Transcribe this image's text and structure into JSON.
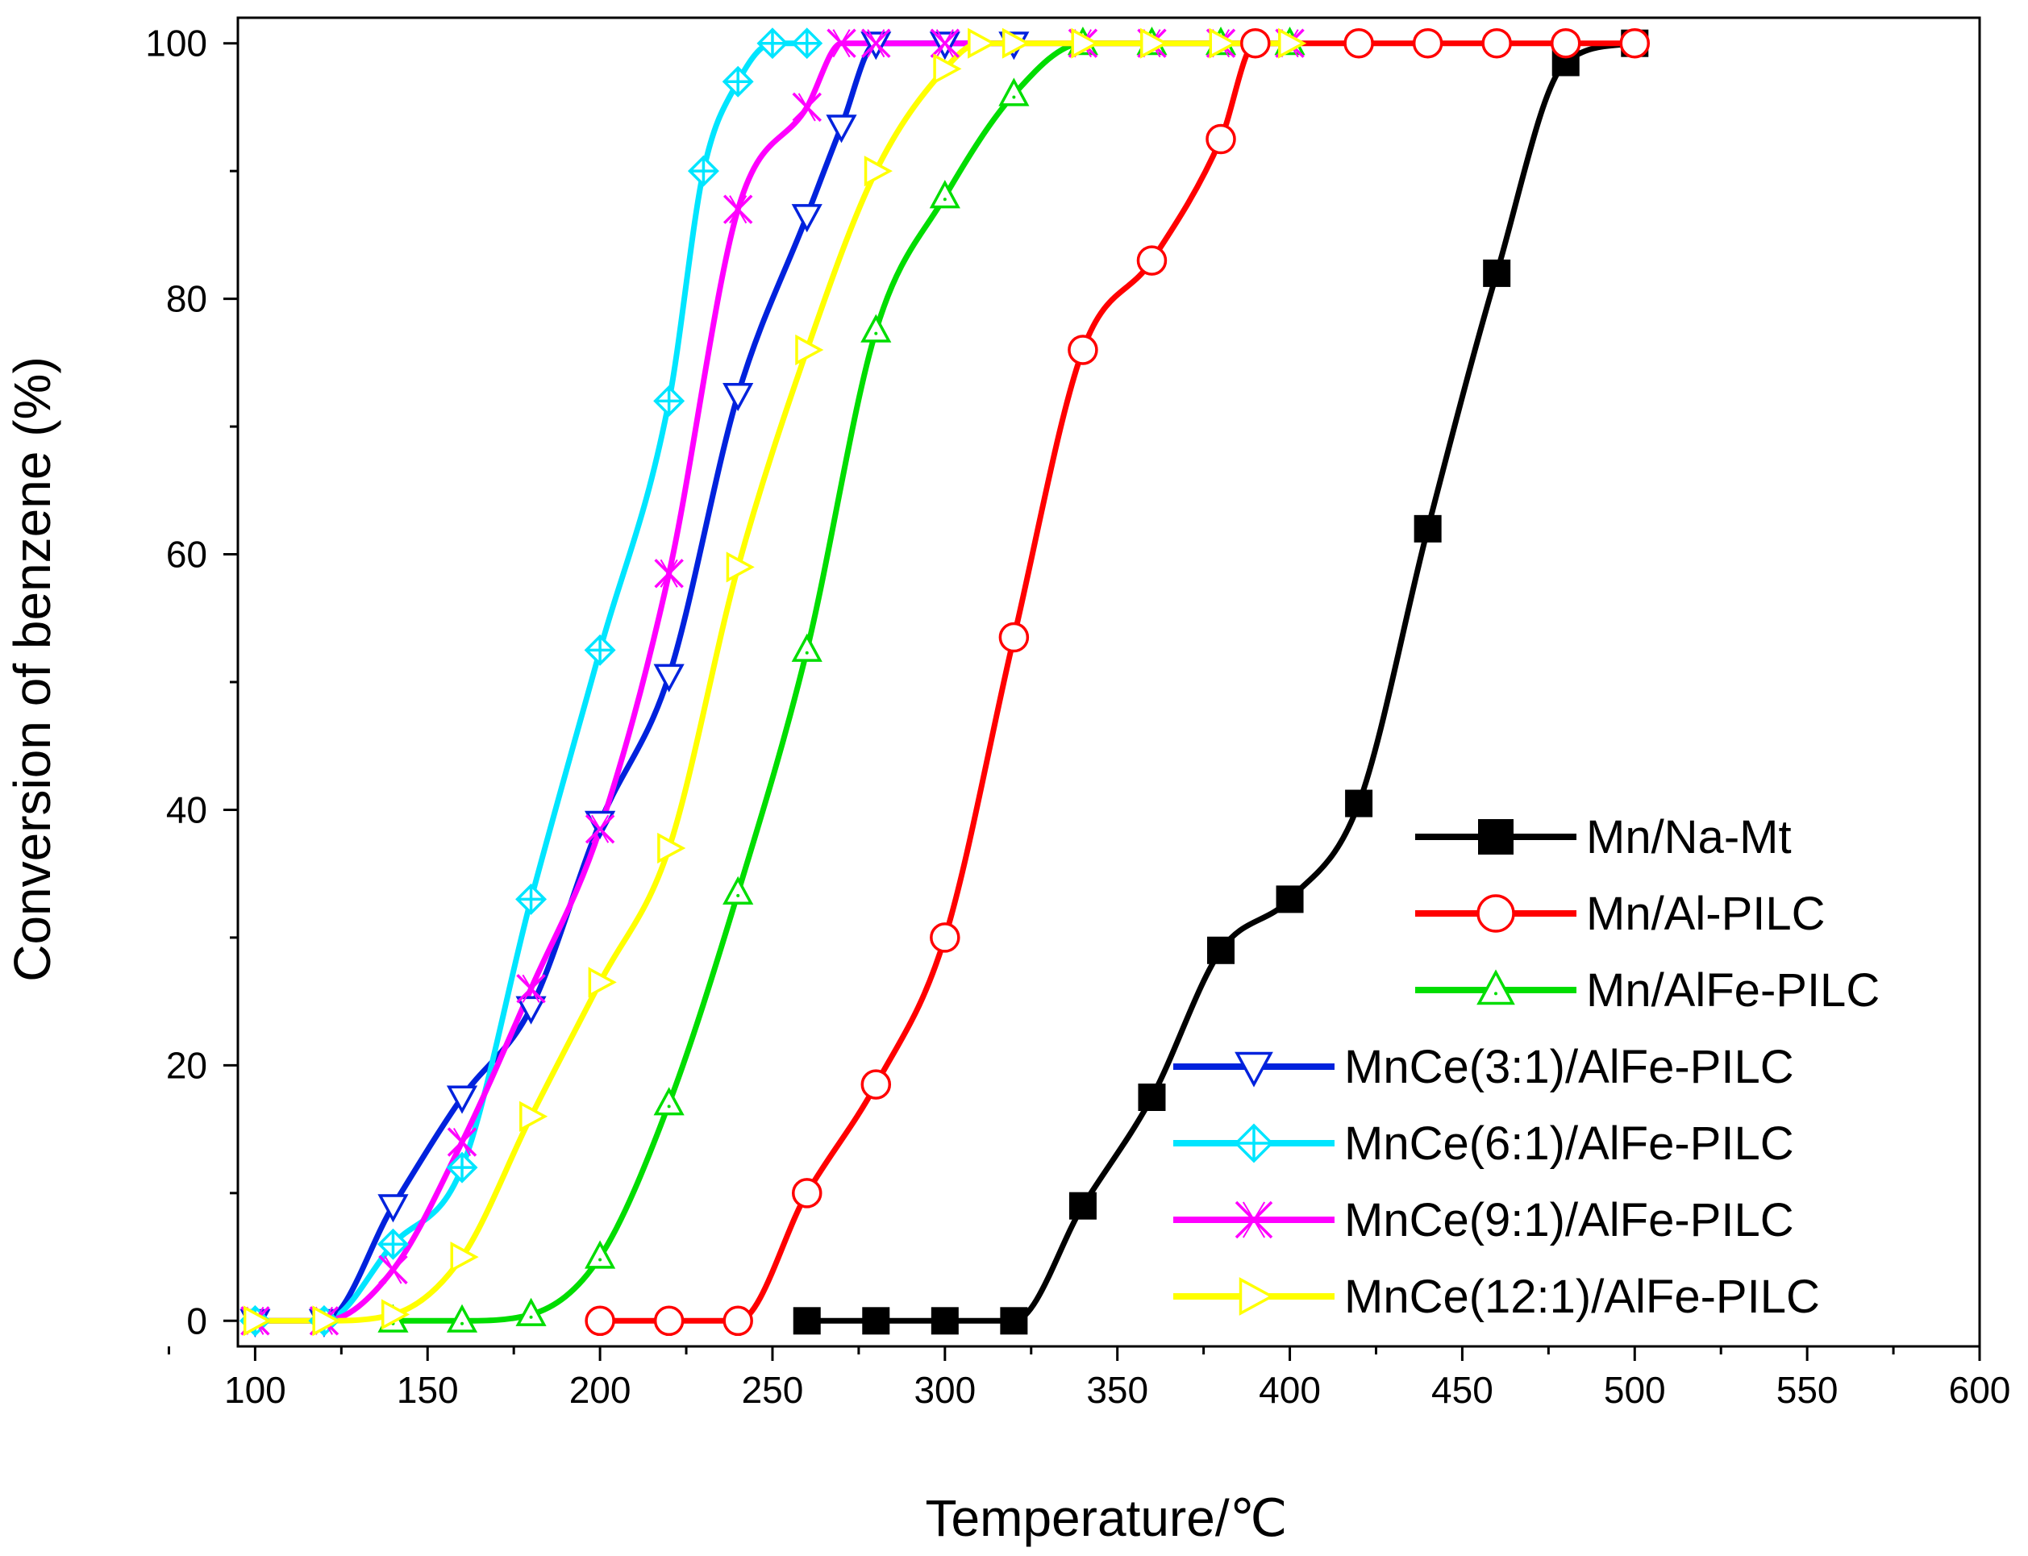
{
  "chart_data": {
    "type": "line",
    "title": "",
    "xlabel": "Temperature/℃",
    "ylabel": "Conversion of benzene (%)",
    "xlim": [
      95,
      600
    ],
    "ylim": [
      -2,
      102
    ],
    "xticks": [
      100,
      150,
      200,
      250,
      300,
      350,
      400,
      450,
      500,
      550,
      600
    ],
    "yticks": [
      0,
      20,
      40,
      60,
      80,
      100
    ],
    "legend_position": "bottom-right",
    "series": [
      {
        "name": "Mn/Na-Mt",
        "color": "#000000",
        "marker": "square-filled",
        "x": [
          260,
          280,
          300,
          320,
          340,
          360,
          380,
          400,
          420,
          440,
          460,
          480,
          500
        ],
        "y": [
          0,
          0,
          0,
          0,
          9,
          17.5,
          29,
          33,
          40.5,
          62,
          82,
          98.5,
          100
        ]
      },
      {
        "name": "Mn/Al-PILC",
        "color": "#ff0000",
        "marker": "circle-open",
        "x": [
          200,
          220,
          240,
          260,
          280,
          300,
          320,
          340,
          360,
          380,
          390,
          420,
          440,
          460,
          480,
          500
        ],
        "y": [
          0,
          0,
          0,
          10,
          18.5,
          30,
          53.5,
          76,
          83,
          92.5,
          100,
          100,
          100,
          100,
          100,
          100
        ]
      },
      {
        "name": "Mn/AlFe-PILC",
        "color": "#00dd00",
        "marker": "triangle-up-open",
        "x": [
          140,
          160,
          180,
          200,
          220,
          240,
          260,
          280,
          300,
          320,
          340,
          360,
          380,
          400
        ],
        "y": [
          0,
          0,
          0.5,
          5,
          17,
          33.5,
          52.5,
          77.5,
          88,
          96,
          100,
          100,
          100,
          100
        ]
      },
      {
        "name": "MnCe(3:1)/AlFe-PILC",
        "color": "#0022dd",
        "marker": "triangle-down-open",
        "x": [
          100,
          120,
          140,
          160,
          180,
          200,
          220,
          240,
          260,
          270,
          280,
          300,
          320
        ],
        "y": [
          0,
          0,
          9,
          17.5,
          24.5,
          39,
          50.5,
          72.5,
          86.5,
          93.5,
          100,
          100,
          100
        ]
      },
      {
        "name": "MnCe(6:1)/AlFe-PILC",
        "color": "#00e5ff",
        "marker": "diamond-cross-open",
        "x": [
          100,
          120,
          140,
          160,
          180,
          200,
          220,
          230,
          240,
          250,
          260
        ],
        "y": [
          0,
          0,
          6,
          12,
          33,
          52.5,
          72,
          90,
          97,
          100,
          100
        ]
      },
      {
        "name": "MnCe(9:1)/AlFe-PILC",
        "color": "#ff00ff",
        "marker": "x-cross",
        "x": [
          100,
          120,
          140,
          160,
          180,
          200,
          220,
          240,
          260,
          270,
          280,
          300,
          340,
          360,
          380,
          400
        ],
        "y": [
          0,
          0,
          4,
          14,
          26,
          38.5,
          58.5,
          87,
          95,
          100,
          100,
          100,
          100,
          100,
          100,
          100
        ]
      },
      {
        "name": "MnCe(12:1)/AlFe-PILC",
        "color": "#ffff00",
        "marker": "triangle-right-open",
        "x": [
          100,
          120,
          140,
          160,
          180,
          200,
          220,
          240,
          260,
          280,
          300,
          310,
          320,
          340,
          360,
          380,
          400
        ],
        "y": [
          0,
          0,
          0.5,
          5,
          16,
          26.5,
          37,
          59,
          76,
          90,
          98,
          100,
          100,
          100,
          100,
          100,
          100
        ]
      }
    ]
  }
}
